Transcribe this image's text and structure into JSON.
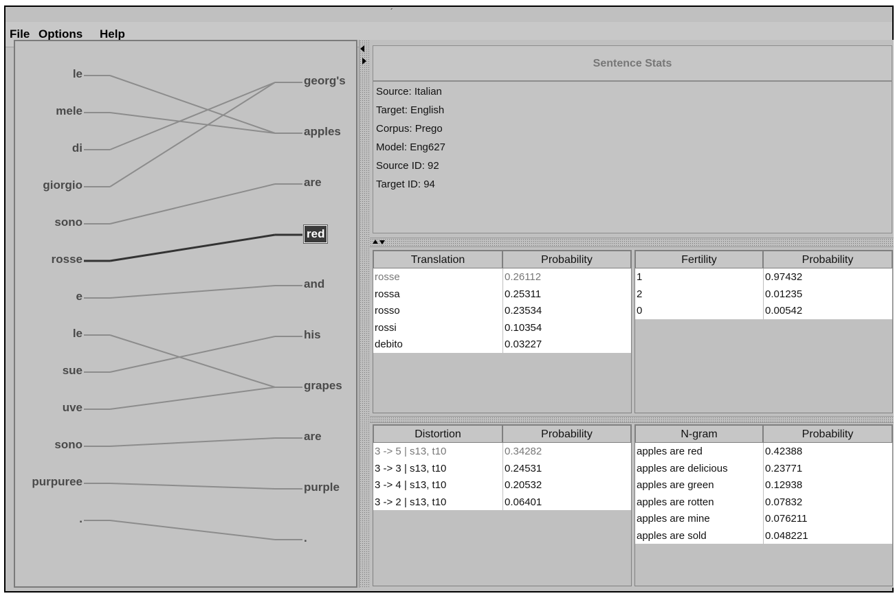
{
  "menu": {
    "file": "File",
    "options": "Options",
    "help": "Help"
  },
  "title_mark": "´",
  "alignment": {
    "source_words": [
      "le",
      "mele",
      "di",
      "giorgio",
      "sono",
      "rosse",
      "e",
      "le",
      "sue",
      "uve",
      "sono",
      "purpuree",
      "."
    ],
    "target_words": [
      "georg's",
      "apples",
      "are",
      "red",
      "and",
      "his",
      "grapes",
      "are",
      "purple",
      "."
    ],
    "selected_target": "red",
    "links": [
      [
        0,
        1
      ],
      [
        1,
        1
      ],
      [
        2,
        0
      ],
      [
        3,
        0
      ],
      [
        4,
        2
      ],
      [
        5,
        3
      ],
      [
        6,
        4
      ],
      [
        7,
        6
      ],
      [
        8,
        5
      ],
      [
        9,
        6
      ],
      [
        10,
        7
      ],
      [
        11,
        8
      ],
      [
        12,
        9
      ]
    ]
  },
  "stats": {
    "title": "Sentence Stats",
    "source": "Source: Italian",
    "target": "Target: English",
    "corpus": "Corpus: Prego",
    "model": "Model: Eng627",
    "source_id": "Source ID: 92",
    "target_id": "Target ID: 94"
  },
  "translation_table": {
    "headers": [
      "Translation",
      "Probability"
    ],
    "rows": [
      [
        "rosse",
        "0.26112"
      ],
      [
        "rossa",
        "0.25311"
      ],
      [
        "rosso",
        "0.23534"
      ],
      [
        "rossi",
        "0.10354"
      ],
      [
        "debito",
        "0.03227"
      ]
    ]
  },
  "fertility_table": {
    "headers": [
      "Fertility",
      "Probability"
    ],
    "rows": [
      [
        "1",
        "0.97432"
      ],
      [
        "2",
        "0.01235"
      ],
      [
        "0",
        "0.00542"
      ]
    ]
  },
  "distortion_table": {
    "headers": [
      "Distortion",
      "Probability"
    ],
    "rows": [
      [
        "3 -> 5 | s13, t10",
        "0.34282"
      ],
      [
        "3 -> 3 | s13, t10",
        "0.24531"
      ],
      [
        "3 -> 4 | s13, t10",
        "0.20532"
      ],
      [
        "3 -> 2 | s13, t10",
        "0.06401"
      ]
    ]
  },
  "ngram_table": {
    "headers": [
      "N-gram",
      "Probability"
    ],
    "rows": [
      [
        "apples are red",
        "0.42388"
      ],
      [
        "apples are delicious",
        "0.23771"
      ],
      [
        "apples are green",
        "0.12938"
      ],
      [
        "apples are rotten",
        "0.07832"
      ],
      [
        "apples are mine",
        "0.076211"
      ],
      [
        "apples are sold",
        "0.048221"
      ]
    ]
  },
  "colors": {
    "link": "#8c8c8c",
    "link_selected": "#333333",
    "selected_bg": "#3a3a3a"
  }
}
